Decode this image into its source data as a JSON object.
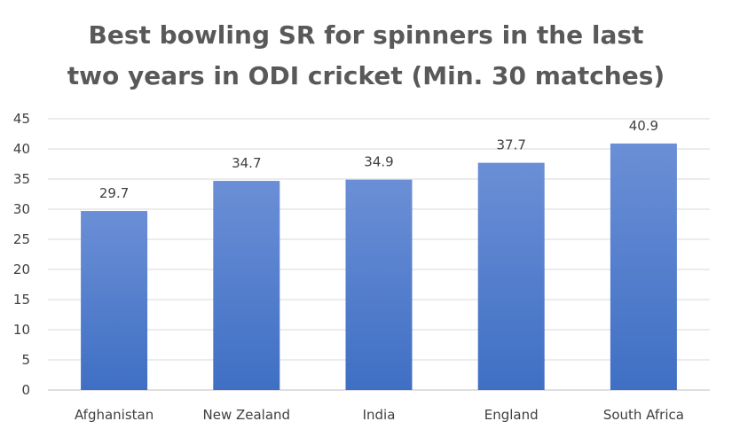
{
  "chart_data": {
    "type": "bar",
    "title_lines": [
      "Best bowling SR for spinners in the last",
      "two years in ODI cricket (Min. 30 matches)"
    ],
    "categories": [
      "Afghanistan",
      "New Zealand",
      "India",
      "England",
      "South Africa"
    ],
    "values": [
      29.7,
      34.7,
      34.9,
      37.7,
      40.9
    ],
    "data_labels": [
      "29.7",
      "34.7",
      "34.9",
      "37.7",
      "40.9"
    ],
    "y_ticks": [
      "0",
      "5",
      "10",
      "15",
      "20",
      "25",
      "30",
      "35",
      "40",
      "45"
    ],
    "ylim": [
      0,
      45
    ],
    "grid": true,
    "legend": "none",
    "bar_color_top": "#6b8fd6",
    "bar_color_bottom": "#3f6fc4"
  }
}
